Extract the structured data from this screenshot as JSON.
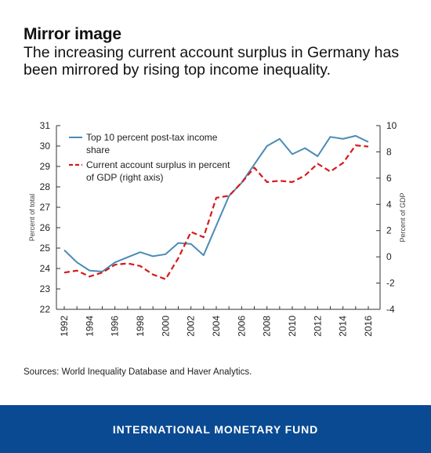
{
  "header": {
    "title": "Mirror image",
    "subtitle": "The increasing current account surplus in Germany has been mirrored by rising top income inequality."
  },
  "chart_data": {
    "type": "line",
    "x": [
      1992,
      1993,
      1994,
      1995,
      1996,
      1997,
      1998,
      1999,
      2000,
      2001,
      2002,
      2003,
      2004,
      2005,
      2006,
      2007,
      2008,
      2009,
      2010,
      2011,
      2012,
      2013,
      2014,
      2015,
      2016
    ],
    "xticks": [
      "1992",
      "1994",
      "1996",
      "1998",
      "2000",
      "2002",
      "2004",
      "2006",
      "2008",
      "2010",
      "2012",
      "2014",
      "2016"
    ],
    "ylabel_left": "Percent of total",
    "ylabel_right": "Percent of GDP",
    "ylim_left": [
      22,
      31
    ],
    "ylim_right": [
      -4,
      10
    ],
    "yticks_left": [
      "31",
      "30",
      "29",
      "28",
      "27",
      "26",
      "25",
      "24",
      "23",
      "22"
    ],
    "yticks_right": [
      "10",
      "8",
      "6",
      "4",
      "2",
      "0",
      "-2",
      "-4"
    ],
    "grid": false,
    "legend_position": "top-left",
    "series": [
      {
        "name": "Top 10 percent post-tax income share",
        "legend_lines": [
          "Top 10 percent post-tax income",
          "share"
        ],
        "axis": "left",
        "color": "#4a8bb5",
        "style": "solid",
        "values": [
          24.9,
          24.3,
          23.9,
          23.85,
          24.3,
          24.55,
          24.8,
          24.6,
          24.7,
          25.25,
          25.2,
          24.65,
          26.1,
          27.55,
          28.2,
          29.1,
          30.0,
          30.35,
          29.6,
          29.9,
          29.5,
          30.45,
          30.35,
          30.5,
          30.2
        ]
      },
      {
        "name": "Current account surplus in percent of GDP (right axis)",
        "legend_lines": [
          "Current account surplus in percent",
          "of GDP (right axis)"
        ],
        "axis": "right",
        "color": "#d7191c",
        "style": "dashed",
        "values": [
          -1.2,
          -1.05,
          -1.5,
          -1.2,
          -0.6,
          -0.5,
          -0.7,
          -1.35,
          -1.7,
          -0.1,
          1.9,
          1.5,
          4.5,
          4.65,
          5.65,
          6.8,
          5.7,
          5.8,
          5.7,
          6.2,
          7.1,
          6.5,
          7.15,
          8.5,
          8.4
        ]
      }
    ]
  },
  "source": "Sources: World Inequality Database and Haver Analytics.",
  "footer": {
    "label": "INTERNATIONAL MONETARY FUND",
    "background": "#0a4a92"
  }
}
